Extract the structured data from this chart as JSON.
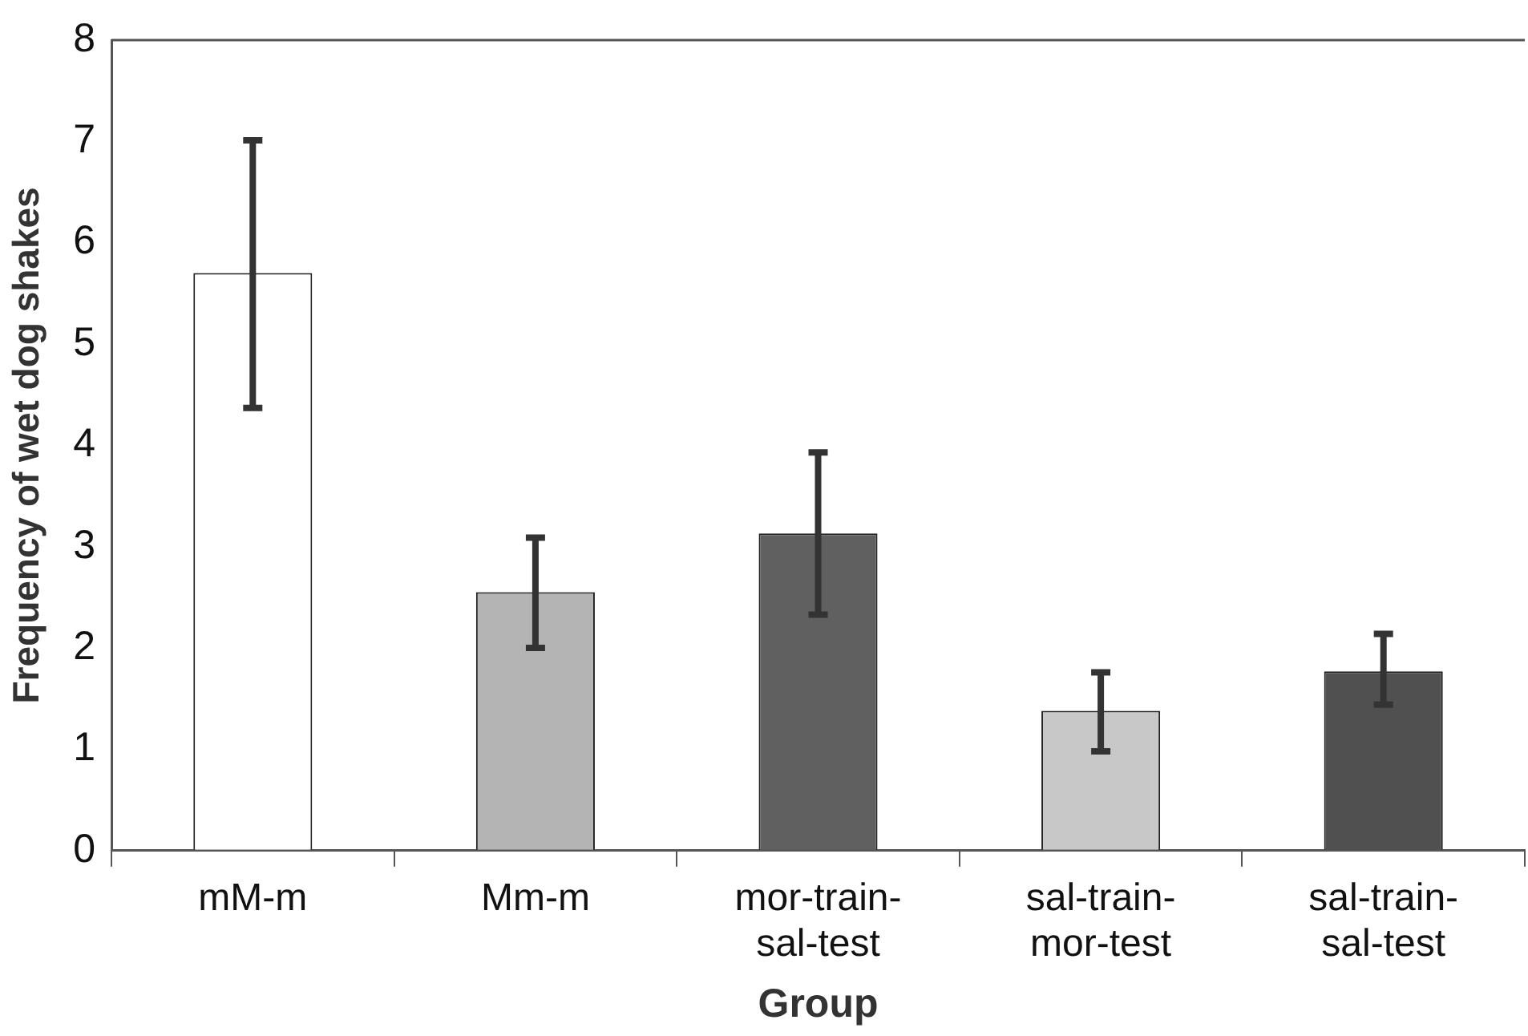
{
  "chart_data": {
    "type": "bar",
    "xlabel": "Group",
    "ylabel": "Frequency of wet dog shakes",
    "categories": [
      "mM-m",
      "Mm-m",
      "mor-train-sal-test",
      "sal-train-mor-test",
      "sal-train-sal-test"
    ],
    "values": [
      5.7,
      2.55,
      3.13,
      1.38,
      1.77
    ],
    "colors": [
      "#ffffff",
      "#b4b4b4",
      "#606060",
      "#c8c8c8",
      "#505050"
    ],
    "errors": [
      [
        4.37,
        7.01
      ],
      [
        2.0,
        3.09
      ],
      [
        2.33,
        3.93
      ],
      [
        0.98,
        1.76
      ],
      [
        1.44,
        2.14
      ]
    ],
    "ylim": [
      0,
      8
    ],
    "yticks": [
      0,
      1,
      2,
      3,
      4,
      5,
      6,
      7,
      8
    ],
    "grid": false,
    "legend": false
  }
}
